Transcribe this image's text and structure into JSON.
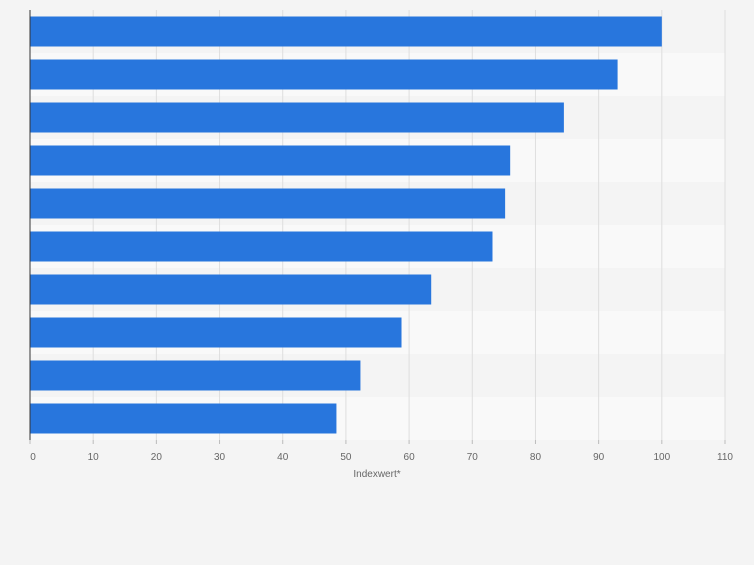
{
  "chart_data": {
    "type": "bar",
    "orientation": "horizontal",
    "categories": [
      "",
      "",
      "",
      "",
      "",
      "",
      "",
      "",
      "",
      ""
    ],
    "values": [
      100,
      93,
      84.5,
      76,
      75.2,
      73.2,
      63.5,
      58.8,
      52.3,
      48.5
    ],
    "xlabel": "Indexwert*",
    "ylabel": "",
    "xlim": [
      0,
      110
    ],
    "xticks": [
      0,
      10,
      20,
      30,
      40,
      50,
      60,
      70,
      80,
      90,
      100,
      110
    ],
    "grid": true,
    "colors": {
      "bar": "#2876dd",
      "band_light": "#f9f9f9",
      "band_dark": "#f4f4f4",
      "grid": "#dedede",
      "tick_text": "#666666",
      "axis": "#333333"
    }
  }
}
